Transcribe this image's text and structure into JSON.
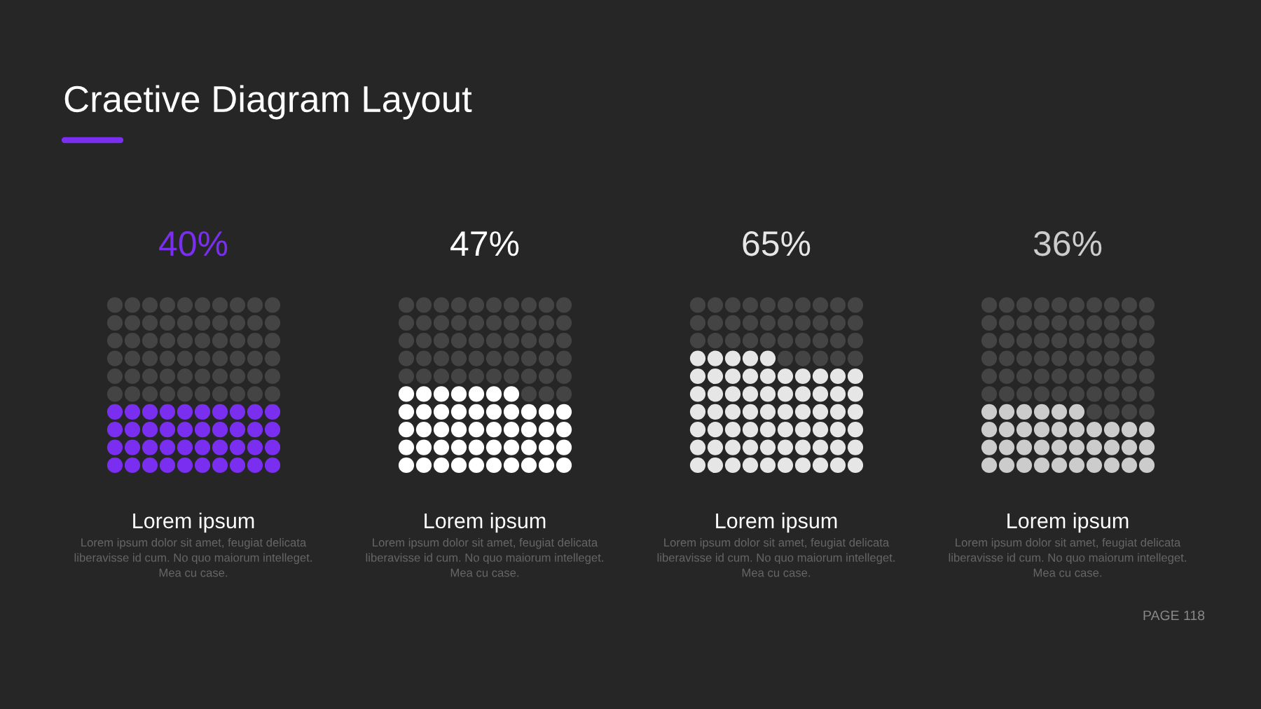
{
  "chart_data": [
    {
      "type": "other",
      "title": "Craetive Diagram Layout",
      "annotations": [
        "PAGE 118"
      ]
    },
    {
      "type": "other",
      "values": [
        40
      ],
      "value_labels": [
        "40%"
      ],
      "color": "#7a2ff0",
      "annotations": [
        "Lorem ipsum",
        "Lorem ipsum dolor sit amet, feugiat delicata\nliberavisse id cum. No quo maiorum intelleget.\nMea cu case."
      ]
    },
    {
      "type": "other",
      "values": [
        47
      ],
      "value_labels": [
        "47%"
      ],
      "color": "#ffffff",
      "annotations": [
        "Lorem ipsum",
        "Lorem ipsum dolor sit amet, feugiat delicata\nliberavisse id cum. No quo maiorum intelleget.\nMea cu case."
      ]
    },
    {
      "type": "other",
      "values": [
        65
      ],
      "value_labels": [
        "65%"
      ],
      "color": "#e6e6e6",
      "annotations": [
        "Lorem ipsum",
        "Lorem ipsum dolor sit amet, feugiat delicata\nliberavisse id cum. No quo maiorum intelleget.\nMea cu case."
      ]
    },
    {
      "type": "other",
      "values": [
        36
      ],
      "value_labels": [
        "36%"
      ],
      "color": "#cccccc",
      "annotations": [
        "Lorem ipsum",
        "Lorem ipsum dolor sit amet, feugiat delicata\nliberavisse id cum. No quo maiorum intelleget.\nMea cu case."
      ]
    }
  ]
}
